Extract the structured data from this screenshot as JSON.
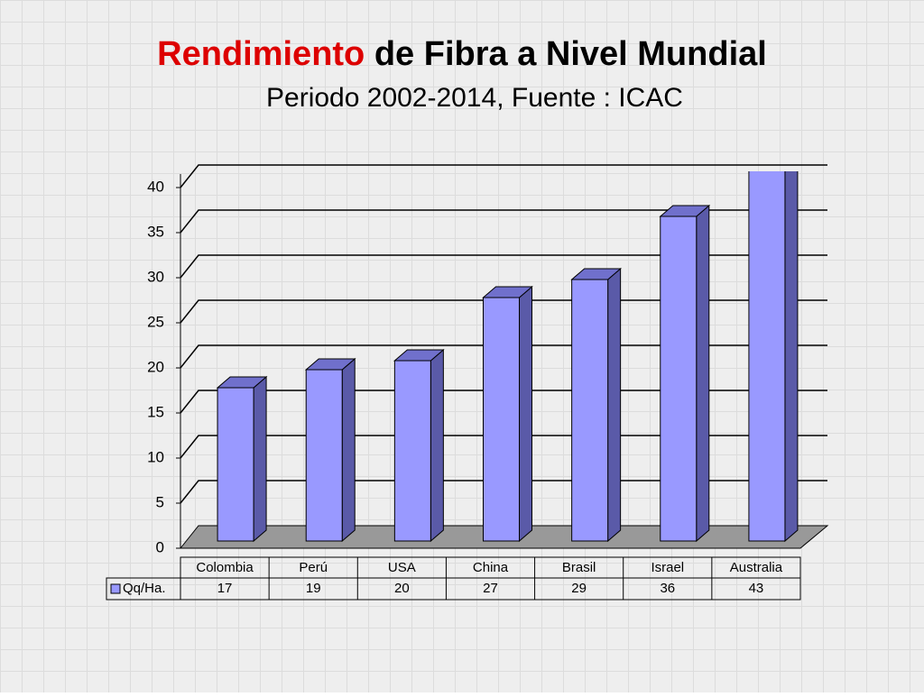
{
  "chart_data": {
    "type": "bar3d",
    "title_parts": [
      "Rendimiento",
      "de Fibra a Nivel Mundial"
    ],
    "subtitle": "Periodo 2002-2014, Fuente : ICAC",
    "categories": [
      "Colombia",
      "Perú",
      "USA",
      "China",
      "Brasil",
      "Israel",
      "Australia"
    ],
    "series": [
      {
        "name": "Qq/Ha.",
        "color": "#9999ff",
        "values": [
          17,
          19,
          20,
          27,
          29,
          36,
          43
        ]
      }
    ],
    "ylim": [
      0,
      40
    ],
    "yticks": [
      0,
      5,
      10,
      15,
      20,
      25,
      30,
      35,
      40
    ],
    "grid": true
  }
}
